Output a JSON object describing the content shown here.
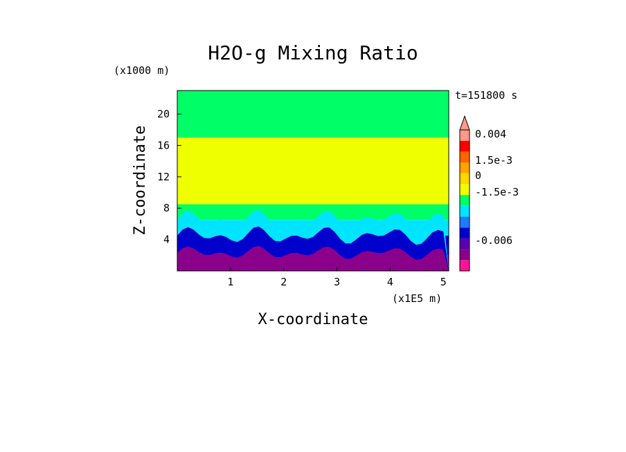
{
  "chart_data": {
    "type": "heatmap",
    "title": "H2O-g Mixing Ratio",
    "xlabel": "X-coordinate",
    "ylabel": "Z-coordinate",
    "x_unit": "(x1E5 m)",
    "y_unit": "(x1000 m)",
    "time_label": "t=151800 s",
    "xlim": [
      0,
      5.1
    ],
    "ylim": [
      0,
      23
    ],
    "x_ticks": [
      "1",
      "2",
      "3",
      "4",
      "5"
    ],
    "y_ticks": [
      "4",
      "8",
      "12",
      "16",
      "20"
    ],
    "colorbar": {
      "labels": [
        "0.004",
        "1.5e-3",
        "0",
        "-1.5e-3",
        "-0.006"
      ],
      "colors": [
        "#ff1493",
        "#8b008b",
        "#5a00b0",
        "#0000cd",
        "#1e7bff",
        "#00e5ff",
        "#00ff66",
        "#f0ff00",
        "#ffd700",
        "#ffa500",
        "#ff6400",
        "#ff0000",
        "#ff9a8a"
      ],
      "extend": "max"
    },
    "regions_note": "",
    "layers": [
      {
        "z_top": 2.0,
        "color": "#8b008b"
      },
      {
        "z_top": 4.5,
        "color": "#0000cd"
      },
      {
        "z_top": 6.5,
        "color": "#00e5ff"
      },
      {
        "z_top": 8.5,
        "color": "#00ff66"
      },
      {
        "z_top": 17.0,
        "color": "#f0ff00"
      },
      {
        "z_top": 23.0,
        "color": "#00ff66"
      }
    ]
  }
}
